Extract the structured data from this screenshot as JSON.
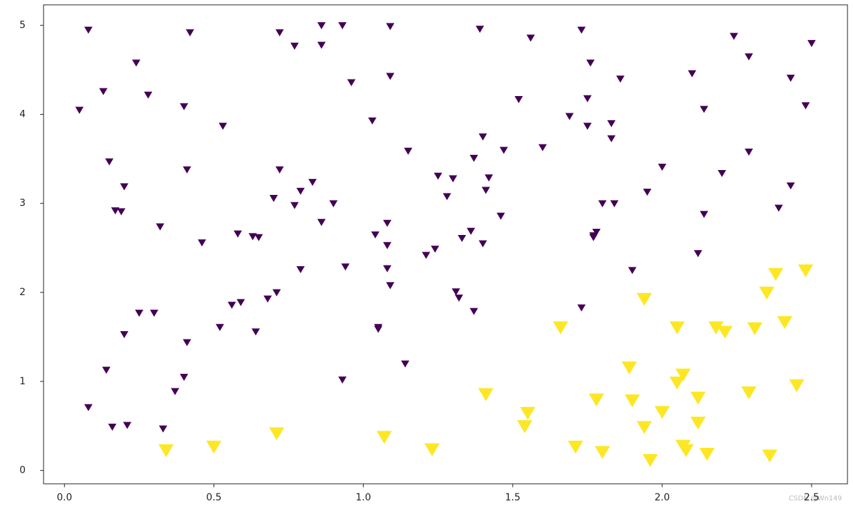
{
  "chart_data": {
    "type": "scatter",
    "marker": "v",
    "xlim": [
      -0.07,
      2.62
    ],
    "ylim": [
      -0.15,
      5.23
    ],
    "xticks": [
      {
        "value": 0,
        "label": "0.0"
      },
      0.5,
      {
        "value": 1,
        "label": "1.0"
      },
      1.5,
      {
        "value": 2,
        "label": "2.0"
      },
      2.5
    ],
    "yticks": [
      0,
      1,
      2,
      3,
      4,
      5
    ],
    "watermark": "CSDN @Wn149",
    "series": [
      {
        "color": "#440154",
        "x": [
          0.08,
          0.05,
          0.13,
          0.24,
          0.28,
          0.42,
          0.4,
          0.53,
          0.15,
          0.2,
          0.17,
          0.19,
          0.32,
          0.41,
          0.46,
          0.58,
          0.63,
          0.65,
          0.72,
          0.77,
          0.86,
          0.86,
          0.93,
          1.09,
          0.96,
          1.09,
          1.03,
          1.15,
          0.72,
          0.7,
          0.79,
          0.83,
          0.77,
          0.9,
          0.86,
          1.08,
          1.04,
          1.08,
          1.08,
          0.94,
          0.79,
          1.09,
          0.71,
          0.68,
          0.59,
          0.56,
          0.25,
          0.3,
          0.2,
          0.52,
          0.64,
          1.05,
          1.05,
          0.41,
          0.14,
          0.4,
          0.93,
          1.14,
          0.37,
          0.08,
          0.16,
          0.21,
          0.33,
          1.25,
          1.3,
          1.28,
          1.24,
          1.21,
          1.33,
          1.36,
          1.31,
          1.32,
          1.37,
          1.4,
          1.37,
          1.4,
          1.42,
          1.41,
          1.46,
          1.47,
          1.39,
          1.56,
          1.73,
          1.76,
          1.52,
          1.75,
          1.69,
          1.75,
          1.6,
          1.83,
          1.83,
          1.86,
          1.8,
          1.84,
          1.78,
          1.77,
          1.77,
          1.9,
          1.73,
          1.95,
          2.0,
          2.1,
          2.14,
          2.24,
          2.29,
          2.29,
          2.2,
          2.14,
          2.12,
          2.43,
          2.48,
          2.5,
          2.43,
          2.39
        ],
        "y": [
          4.95,
          4.05,
          4.26,
          4.58,
          4.22,
          4.92,
          4.09,
          3.87,
          3.47,
          3.19,
          2.92,
          2.91,
          2.74,
          3.38,
          2.56,
          2.66,
          2.63,
          2.62,
          4.92,
          4.77,
          5.0,
          4.78,
          5.0,
          4.99,
          4.36,
          4.43,
          3.93,
          3.59,
          3.38,
          3.06,
          3.14,
          3.24,
          2.98,
          3.0,
          2.79,
          2.78,
          2.65,
          2.53,
          2.27,
          2.29,
          2.26,
          2.08,
          2.0,
          1.93,
          1.89,
          1.86,
          1.77,
          1.77,
          1.53,
          1.61,
          1.56,
          1.61,
          1.59,
          1.44,
          1.13,
          1.05,
          1.02,
          1.2,
          0.89,
          0.71,
          0.49,
          0.51,
          0.47,
          3.31,
          3.28,
          3.08,
          2.49,
          2.42,
          2.61,
          2.69,
          2.01,
          1.94,
          1.79,
          2.55,
          3.51,
          3.75,
          3.29,
          3.15,
          2.86,
          3.6,
          4.96,
          4.86,
          4.95,
          4.58,
          4.17,
          4.18,
          3.98,
          3.87,
          3.63,
          3.9,
          3.73,
          4.4,
          3.0,
          3.0,
          2.68,
          2.64,
          2.62,
          2.25,
          1.83,
          3.13,
          3.41,
          4.46,
          4.06,
          4.88,
          4.65,
          3.58,
          3.34,
          2.88,
          2.44,
          4.41,
          4.1,
          4.8,
          3.2,
          2.95
        ]
      },
      {
        "color": "#fde725",
        "x": [
          0.34,
          0.5,
          0.71,
          1.07,
          1.23,
          1.41,
          1.55,
          1.54,
          1.66,
          1.71,
          1.78,
          1.8,
          1.89,
          1.9,
          1.94,
          1.94,
          1.96,
          2.0,
          2.05,
          2.05,
          2.07,
          2.07,
          2.08,
          2.12,
          2.12,
          2.15,
          2.18,
          2.21,
          2.29,
          2.31,
          2.35,
          2.36,
          2.38,
          2.41,
          2.45,
          2.48
        ],
        "y": [
          0.23,
          0.27,
          0.42,
          0.38,
          0.24,
          0.86,
          0.65,
          0.5,
          1.61,
          0.27,
          0.8,
          0.21,
          1.16,
          0.79,
          1.93,
          0.49,
          0.12,
          0.66,
          1.61,
          0.99,
          1.08,
          0.28,
          0.23,
          0.82,
          0.54,
          0.19,
          1.61,
          1.56,
          0.88,
          1.6,
          2.0,
          0.17,
          2.21,
          1.67,
          0.96,
          2.25
        ]
      }
    ]
  }
}
